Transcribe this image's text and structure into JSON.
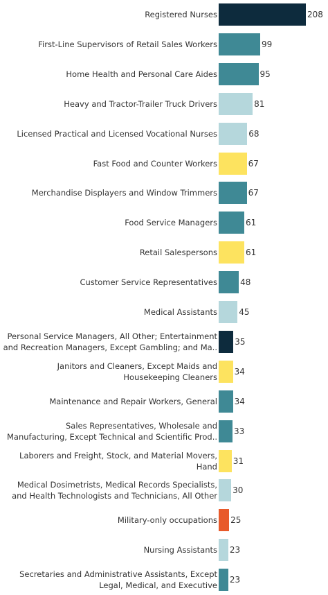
{
  "chart_data": {
    "type": "bar",
    "orientation": "horizontal",
    "categories": [
      "Registered Nurses",
      "First-Line Supervisors of Retail Sales Workers",
      "Home Health and Personal Care Aides",
      "Heavy and Tractor-Trailer Truck Drivers",
      "Licensed Practical and Licensed Vocational Nurses",
      "Fast Food and Counter Workers",
      "Merchandise Displayers and Window Trimmers",
      "Food Service Managers",
      "Retail Salespersons",
      "Customer Service Representatives",
      "Medical Assistants",
      "Personal Service Managers, All Other; Entertainment\nand Recreation Managers, Except Gambling; and Ma..",
      "Janitors and Cleaners, Except Maids and\nHousekeeping Cleaners",
      "Maintenance and Repair Workers, General",
      "Sales Representatives, Wholesale and\nManufacturing, Except Technical and Scientific Prod..",
      "Laborers and Freight, Stock, and Material Movers,\nHand",
      "Medical Dosimetrists, Medical Records Specialists,\nand Health Technologists and Technicians, All Other",
      "Military-only occupations",
      "Nursing Assistants",
      "Secretaries and Administrative Assistants, Except\nLegal, Medical, and Executive"
    ],
    "values": [
      208,
      99,
      95,
      81,
      68,
      67,
      67,
      61,
      61,
      48,
      45,
      35,
      34,
      34,
      33,
      31,
      30,
      25,
      23,
      23
    ],
    "colors": [
      "#0d2b3d",
      "#3f8995",
      "#3f8995",
      "#b5d7dc",
      "#b5d7dc",
      "#fde35f",
      "#3f8995",
      "#3f8995",
      "#fde35f",
      "#3f8995",
      "#b5d7dc",
      "#0d2b3d",
      "#fde35f",
      "#3f8995",
      "#3f8995",
      "#fde35f",
      "#b5d7dc",
      "#e85a2a",
      "#b5d7dc",
      "#3f8995"
    ]
  }
}
